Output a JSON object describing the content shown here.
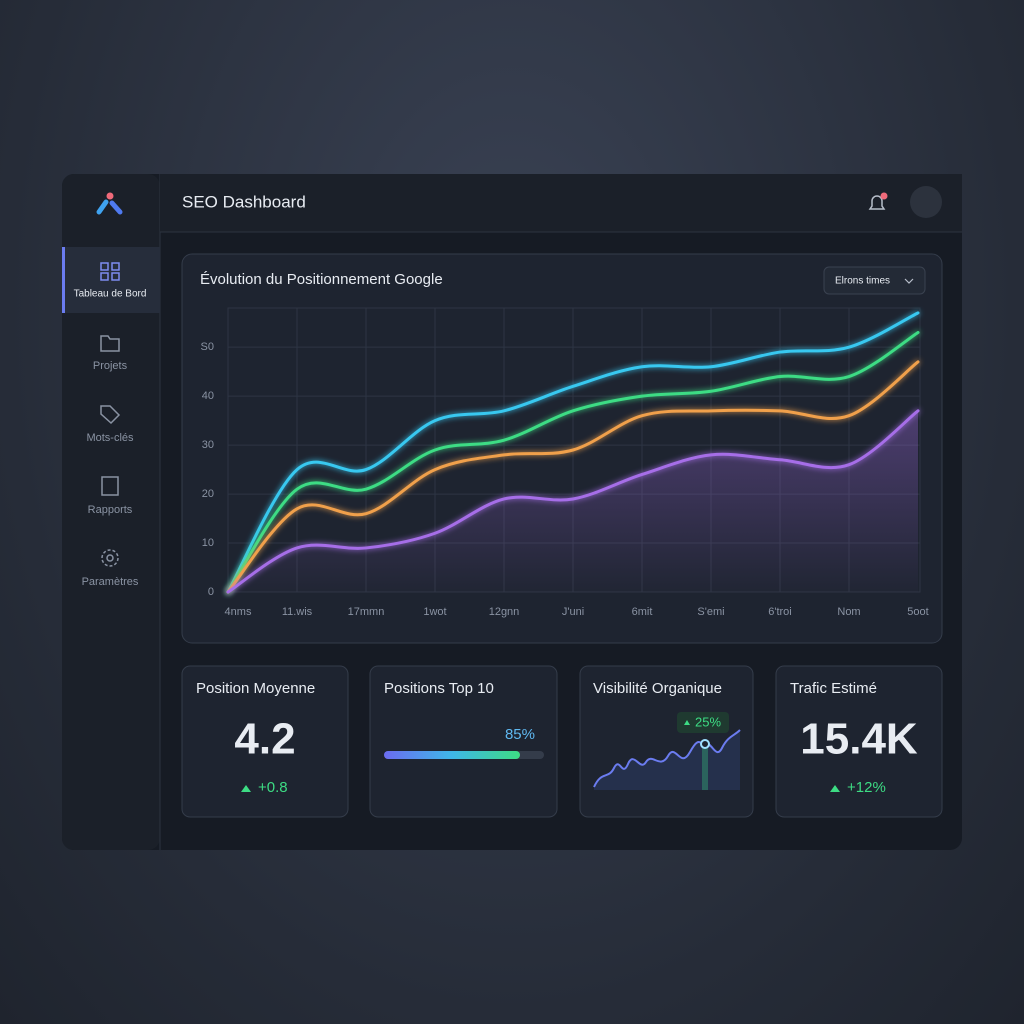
{
  "header": {
    "title": "SEO Dashboard"
  },
  "sidebar": {
    "items": [
      "Tableau de Bord",
      "Projets",
      "Mots-clés",
      "Rapports",
      "Paramètres"
    ]
  },
  "chart_data": {
    "type": "line",
    "title": "Évolution du Positionnement Google",
    "dropdown": "Elrons times",
    "categories": [
      "4nms",
      "11.wis",
      "17mmn",
      "1wot",
      "12gnn",
      "J'uni",
      "6mit",
      "S'emi",
      "6'troi",
      "Nom",
      "5oot"
    ],
    "series": [
      {
        "color": "#38c8f0",
        "values": [
          0,
          25,
          25,
          35,
          37,
          42,
          46,
          46,
          49,
          50,
          57
        ]
      },
      {
        "color": "#3ddc84",
        "values": [
          0,
          21,
          21,
          29,
          31,
          37,
          40,
          41,
          44,
          44,
          53
        ]
      },
      {
        "color": "#f0a04b",
        "values": [
          0,
          17,
          16,
          25,
          28,
          29,
          36,
          37,
          37,
          36,
          47
        ]
      },
      {
        "color": "#a66ee8",
        "values": [
          0,
          9,
          9,
          12,
          19,
          19,
          24,
          28,
          27,
          26,
          37
        ]
      }
    ],
    "ylim": [
      0,
      58
    ],
    "yticks": [
      0,
      10,
      20,
      30,
      40,
      {
        "value": 50,
        "label": "S0"
      }
    ],
    "grid": true
  },
  "cards": [
    {
      "title": "Position Moyenne",
      "value": "4.2",
      "change": "+0.8"
    },
    {
      "title": "Positions Top 10",
      "progress": {
        "value": 85,
        "label": "85%"
      },
      "progress_max": 100
    },
    {
      "title": "Visibilité Organique",
      "badge": "25%"
    },
    {
      "title": "Trafic Estimé",
      "value": "15.4K",
      "change": "+12%"
    }
  ]
}
